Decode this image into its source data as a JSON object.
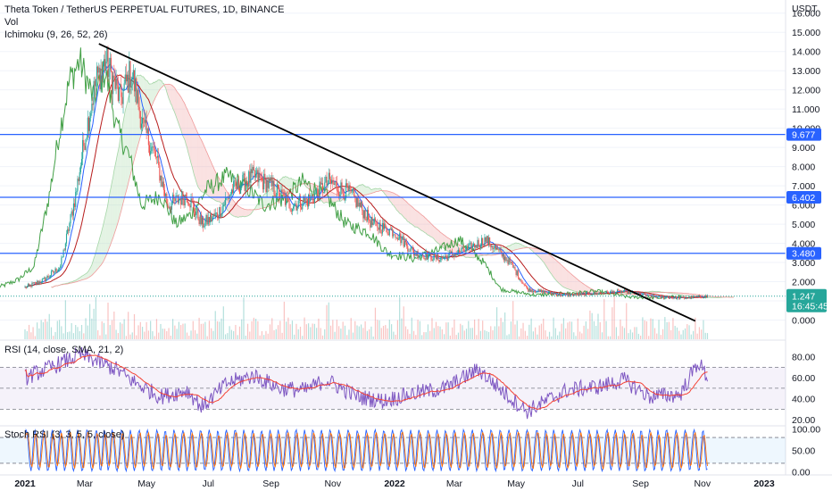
{
  "header": {
    "symbol_title": "Theta Token / TetherUS PERPETUAL FUTURES, 1D, BINANCE",
    "vol_label": "Vol",
    "ichimoku_label": "Ichimoku (9, 26, 52, 26)",
    "currency": "USDT"
  },
  "colors": {
    "up": "#26a69a",
    "down": "#ef5350",
    "hline": "#2962ff",
    "trendline": "#000000",
    "rsi_line": "#7e57c2",
    "rsi_ma": "#f44336",
    "stoch_k": "#2962ff",
    "stoch_d": "#ff6d00",
    "price_badge": "#26a69a"
  },
  "chart_data": [
    {
      "type": "candlestick",
      "title": "Theta Token / TetherUS PERPETUAL FUTURES, 1D, BINANCE",
      "ylim": [
        -1,
        16.5
      ],
      "yticks": [
        "16.000",
        "15.000",
        "14.000",
        "13.000",
        "12.000",
        "11.000",
        "10.000",
        "9.000",
        "8.000",
        "7.000",
        "6.000",
        "5.000",
        "4.000",
        "3.000",
        "2.000",
        "1.000",
        "0.000"
      ],
      "x_ticks": [
        "2021",
        "Mar",
        "May",
        "Jul",
        "Sep",
        "Nov",
        "2022",
        "Mar",
        "May",
        "Jul",
        "Sep",
        "Nov",
        "2023"
      ],
      "price_anchors": [
        {
          "date": "2021-01-01",
          "close": 1.7
        },
        {
          "date": "2021-01-20",
          "close": 2.1
        },
        {
          "date": "2021-02-05",
          "close": 2.8
        },
        {
          "date": "2021-02-20",
          "close": 6.5
        },
        {
          "date": "2021-03-01",
          "close": 9.5
        },
        {
          "date": "2021-03-12",
          "close": 12.5
        },
        {
          "date": "2021-03-22",
          "close": 13.5
        },
        {
          "date": "2021-04-05",
          "close": 11.5
        },
        {
          "date": "2021-04-16",
          "close": 13.0
        },
        {
          "date": "2021-04-28",
          "close": 10.0
        },
        {
          "date": "2021-05-10",
          "close": 8.5
        },
        {
          "date": "2021-05-22",
          "close": 6.0
        },
        {
          "date": "2021-06-10",
          "close": 6.5
        },
        {
          "date": "2021-06-25",
          "close": 5.0
        },
        {
          "date": "2021-07-10",
          "close": 5.5
        },
        {
          "date": "2021-07-25",
          "close": 6.8
        },
        {
          "date": "2021-08-15",
          "close": 7.5
        },
        {
          "date": "2021-09-01",
          "close": 7.0
        },
        {
          "date": "2021-09-20",
          "close": 6.0
        },
        {
          "date": "2021-10-10",
          "close": 6.3
        },
        {
          "date": "2021-10-28",
          "close": 7.2
        },
        {
          "date": "2021-11-20",
          "close": 6.5
        },
        {
          "date": "2021-12-10",
          "close": 5.0
        },
        {
          "date": "2022-01-01",
          "close": 4.6
        },
        {
          "date": "2022-01-20",
          "close": 3.5
        },
        {
          "date": "2022-02-15",
          "close": 3.2
        },
        {
          "date": "2022-03-10",
          "close": 3.6
        },
        {
          "date": "2022-04-01",
          "close": 4.2
        },
        {
          "date": "2022-04-25",
          "close": 3.0
        },
        {
          "date": "2022-05-12",
          "close": 1.6
        },
        {
          "date": "2022-06-15",
          "close": 1.3
        },
        {
          "date": "2022-07-20",
          "close": 1.4
        },
        {
          "date": "2022-08-15",
          "close": 1.5
        },
        {
          "date": "2022-09-15",
          "close": 1.2
        },
        {
          "date": "2022-10-15",
          "close": 1.15
        },
        {
          "date": "2022-11-06",
          "close": 1.247
        }
      ],
      "horizontal_levels": [
        9.677,
        6.402,
        3.48
      ],
      "level_labels": [
        "9.677",
        "6.402",
        "3.480"
      ],
      "trendline": {
        "from": {
          "date": "2021-03-15",
          "price": 14.4
        },
        "to": {
          "date": "2022-10-25",
          "price": -0.05
        }
      },
      "last_price": "1.247",
      "countdown": "16:45:45"
    },
    {
      "type": "line",
      "title": "RSI (14, close, SMA, 21, 2)",
      "ylim": [
        15,
        95
      ],
      "yticks": [
        "80.00",
        "60.00",
        "40.00",
        "20.00"
      ],
      "bands": [
        70,
        50,
        30
      ],
      "rsi_anchors": [
        {
          "date": "2021-01-01",
          "value": 60
        },
        {
          "date": "2021-02-01",
          "value": 72
        },
        {
          "date": "2021-02-25",
          "value": 82
        },
        {
          "date": "2021-03-15",
          "value": 75
        },
        {
          "date": "2021-04-01",
          "value": 68
        },
        {
          "date": "2021-04-20",
          "value": 55
        },
        {
          "date": "2021-05-15",
          "value": 42
        },
        {
          "date": "2021-06-10",
          "value": 48
        },
        {
          "date": "2021-06-25",
          "value": 32
        },
        {
          "date": "2021-07-20",
          "value": 55
        },
        {
          "date": "2021-08-15",
          "value": 62
        },
        {
          "date": "2021-09-10",
          "value": 50
        },
        {
          "date": "2021-10-05",
          "value": 48
        },
        {
          "date": "2021-10-25",
          "value": 58
        },
        {
          "date": "2021-11-25",
          "value": 42
        },
        {
          "date": "2021-12-20",
          "value": 38
        },
        {
          "date": "2022-01-20",
          "value": 45
        },
        {
          "date": "2022-02-20",
          "value": 50
        },
        {
          "date": "2022-03-25",
          "value": 68
        },
        {
          "date": "2022-04-20",
          "value": 45
        },
        {
          "date": "2022-05-12",
          "value": 28
        },
        {
          "date": "2022-06-20",
          "value": 48
        },
        {
          "date": "2022-07-25",
          "value": 52
        },
        {
          "date": "2022-08-15",
          "value": 58
        },
        {
          "date": "2022-09-10",
          "value": 42
        },
        {
          "date": "2022-10-10",
          "value": 44
        },
        {
          "date": "2022-10-28",
          "value": 75
        },
        {
          "date": "2022-11-06",
          "value": 60
        }
      ]
    },
    {
      "type": "line",
      "title": "Stoch RSI (3, 3, 5, 5, close)",
      "ylim": [
        -5,
        105
      ],
      "yticks": [
        "100.00",
        "50.00",
        "0.00"
      ],
      "bands": [
        80,
        20
      ]
    }
  ]
}
